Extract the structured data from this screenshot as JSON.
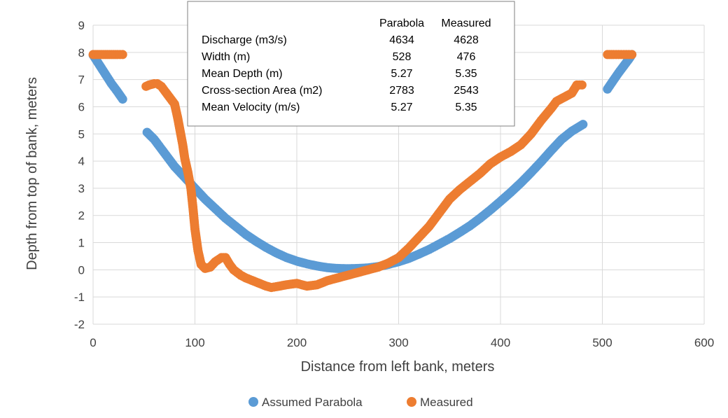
{
  "chart_data": {
    "type": "scatter",
    "title": "",
    "xlabel": "Distance from left bank, meters",
    "ylabel": "Depth from top of bank, meters",
    "xlim": [
      0,
      600
    ],
    "ylim": [
      -2,
      9
    ],
    "x_ticks": [
      "0",
      "100",
      "200",
      "300",
      "400",
      "500",
      "600"
    ],
    "y_ticks": [
      "-2",
      "-1",
      "0",
      "1",
      "2",
      "3",
      "4",
      "5",
      "6",
      "7",
      "8",
      "9"
    ],
    "grid": true,
    "legend_position": "bottom",
    "series": [
      {
        "name": "Assumed Parabola",
        "color": "#5b9bd5",
        "points": [
          [
            0,
            7.9
          ],
          [
            6,
            7.55
          ],
          [
            12,
            7.2
          ],
          [
            18,
            6.85
          ],
          [
            24,
            6.55
          ],
          [
            29,
            6.28
          ],
          [
            53,
            5.06
          ],
          [
            60,
            4.8
          ],
          [
            70,
            4.3
          ],
          [
            80,
            3.8
          ],
          [
            90,
            3.4
          ],
          [
            100,
            3.0
          ],
          [
            110,
            2.6
          ],
          [
            120,
            2.25
          ],
          [
            130,
            1.9
          ],
          [
            140,
            1.6
          ],
          [
            150,
            1.3
          ],
          [
            160,
            1.05
          ],
          [
            170,
            0.82
          ],
          [
            180,
            0.62
          ],
          [
            190,
            0.45
          ],
          [
            200,
            0.32
          ],
          [
            210,
            0.22
          ],
          [
            220,
            0.14
          ],
          [
            230,
            0.08
          ],
          [
            240,
            0.05
          ],
          [
            250,
            0.04
          ],
          [
            260,
            0.05
          ],
          [
            270,
            0.07
          ],
          [
            280,
            0.12
          ],
          [
            290,
            0.2
          ],
          [
            300,
            0.3
          ],
          [
            310,
            0.42
          ],
          [
            320,
            0.58
          ],
          [
            330,
            0.75
          ],
          [
            340,
            0.95
          ],
          [
            350,
            1.15
          ],
          [
            360,
            1.38
          ],
          [
            370,
            1.62
          ],
          [
            380,
            1.9
          ],
          [
            390,
            2.2
          ],
          [
            400,
            2.52
          ],
          [
            410,
            2.85
          ],
          [
            420,
            3.2
          ],
          [
            430,
            3.58
          ],
          [
            440,
            3.98
          ],
          [
            450,
            4.4
          ],
          [
            460,
            4.8
          ],
          [
            470,
            5.1
          ],
          [
            481,
            5.35
          ],
          [
            505,
            6.65
          ],
          [
            511,
            6.98
          ],
          [
            516,
            7.25
          ],
          [
            521,
            7.5
          ],
          [
            526,
            7.75
          ],
          [
            529,
            7.92
          ]
        ]
      },
      {
        "name": "Measured",
        "color": "#ed7d31",
        "points": [
          [
            0,
            7.92
          ],
          [
            6,
            7.92
          ],
          [
            12,
            7.92
          ],
          [
            18,
            7.92
          ],
          [
            24,
            7.92
          ],
          [
            29,
            7.92
          ],
          [
            52,
            6.75
          ],
          [
            55,
            6.8
          ],
          [
            60,
            6.85
          ],
          [
            63,
            6.85
          ],
          [
            67,
            6.75
          ],
          [
            70,
            6.6
          ],
          [
            75,
            6.35
          ],
          [
            80,
            6.1
          ],
          [
            83,
            5.6
          ],
          [
            86,
            5.0
          ],
          [
            88,
            4.6
          ],
          [
            90,
            4.1
          ],
          [
            93,
            3.6
          ],
          [
            96,
            3.0
          ],
          [
            98,
            2.3
          ],
          [
            100,
            1.5
          ],
          [
            103,
            0.7
          ],
          [
            106,
            0.2
          ],
          [
            110,
            0.05
          ],
          [
            115,
            0.1
          ],
          [
            120,
            0.3
          ],
          [
            126,
            0.45
          ],
          [
            130,
            0.45
          ],
          [
            134,
            0.2
          ],
          [
            138,
            0.0
          ],
          [
            145,
            -0.2
          ],
          [
            150,
            -0.3
          ],
          [
            160,
            -0.45
          ],
          [
            170,
            -0.6
          ],
          [
            175,
            -0.65
          ],
          [
            180,
            -0.62
          ],
          [
            190,
            -0.55
          ],
          [
            200,
            -0.5
          ],
          [
            210,
            -0.6
          ],
          [
            220,
            -0.55
          ],
          [
            230,
            -0.4
          ],
          [
            240,
            -0.3
          ],
          [
            250,
            -0.2
          ],
          [
            260,
            -0.1
          ],
          [
            270,
            0.0
          ],
          [
            280,
            0.1
          ],
          [
            290,
            0.25
          ],
          [
            300,
            0.45
          ],
          [
            310,
            0.8
          ],
          [
            320,
            1.2
          ],
          [
            330,
            1.6
          ],
          [
            340,
            2.1
          ],
          [
            350,
            2.6
          ],
          [
            360,
            2.95
          ],
          [
            370,
            3.25
          ],
          [
            380,
            3.55
          ],
          [
            390,
            3.9
          ],
          [
            400,
            4.15
          ],
          [
            410,
            4.35
          ],
          [
            420,
            4.6
          ],
          [
            430,
            5.0
          ],
          [
            440,
            5.5
          ],
          [
            450,
            5.95
          ],
          [
            455,
            6.2
          ],
          [
            460,
            6.3
          ],
          [
            465,
            6.4
          ],
          [
            470,
            6.5
          ],
          [
            475,
            6.8
          ],
          [
            480,
            6.8
          ],
          [
            505,
            7.92
          ],
          [
            511,
            7.92
          ],
          [
            516,
            7.92
          ],
          [
            521,
            7.92
          ],
          [
            526,
            7.92
          ],
          [
            529,
            7.92
          ]
        ]
      }
    ],
    "annotation_table": {
      "columns": [
        "",
        "Parabola",
        "Measured"
      ],
      "rows": [
        [
          "Discharge (m3/s)",
          "4634",
          "4628"
        ],
        [
          "Width (m)",
          "528",
          "476"
        ],
        [
          "Mean Depth (m)",
          "5.27",
          "5.35"
        ],
        [
          "Cross-section Area (m2)",
          "2783",
          "2543"
        ],
        [
          "Mean Velocity (m/s)",
          "5.27",
          "5.35"
        ]
      ]
    }
  }
}
